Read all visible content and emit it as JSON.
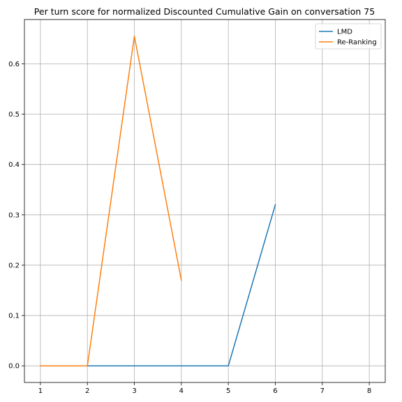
{
  "chart_data": {
    "type": "line",
    "title": "Per turn score for normalized Discounted Cumulative Gain on conversation 75",
    "xlabel": "",
    "ylabel": "",
    "xlim": [
      0.66,
      8.34
    ],
    "ylim": [
      -0.033,
      0.688
    ],
    "x_ticks": [
      1,
      2,
      3,
      4,
      5,
      6,
      7,
      8
    ],
    "y_ticks": [
      0.0,
      0.1,
      0.2,
      0.3,
      0.4,
      0.5,
      0.6
    ],
    "y_tick_labels": [
      "0.0",
      "0.1",
      "0.2",
      "0.3",
      "0.4",
      "0.5",
      "0.6"
    ],
    "grid": true,
    "legend_position": "top-right",
    "series": [
      {
        "name": "LMD",
        "color": "#1f77b4",
        "x": [
          1,
          2,
          3,
          4,
          5,
          6
        ],
        "y": [
          0.0,
          0.0,
          0.0,
          0.0,
          0.0,
          0.32
        ]
      },
      {
        "name": "Re-Ranking",
        "color": "#ff7f0e",
        "x": [
          1,
          2,
          3,
          4
        ],
        "y": [
          0.0,
          0.0,
          0.655,
          0.17
        ]
      }
    ]
  }
}
